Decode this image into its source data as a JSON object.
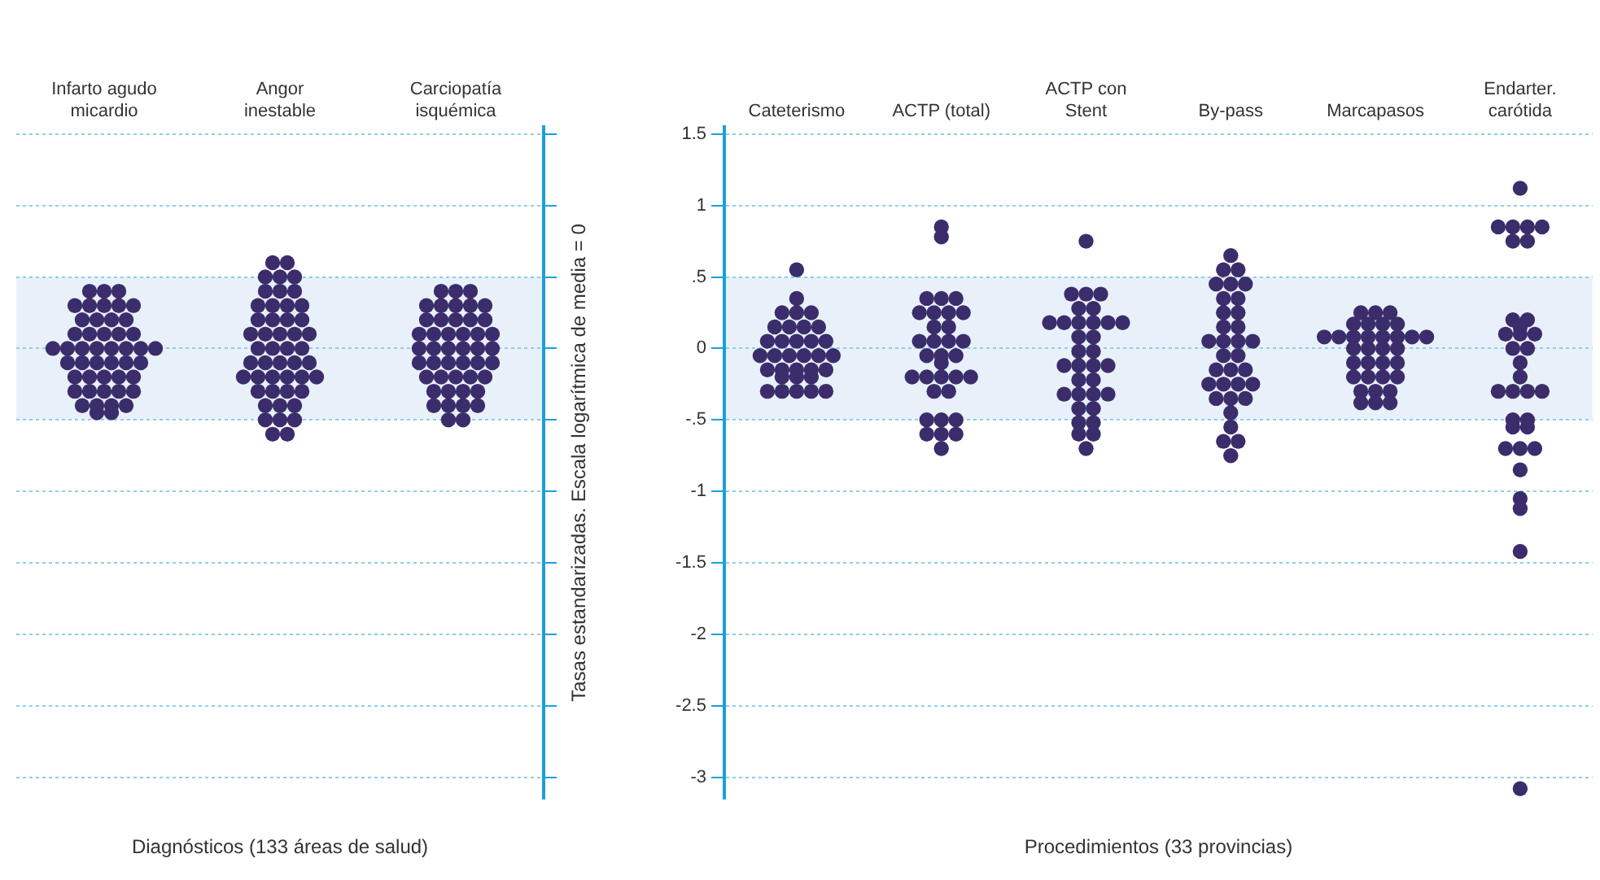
{
  "chart_data": [
    {
      "type": "scatter",
      "categories": [
        "Infarto agudo micardio",
        "Angor inestable",
        "Carciopatía isquémica"
      ],
      "xlabel": "Diagnósticos (133 áreas de salud)",
      "ylim": [
        -3.15,
        1.55
      ],
      "yticks": [
        1.5,
        1,
        0.5,
        0,
        -0.5,
        -1,
        -1.5,
        -2,
        -2.5,
        -3
      ],
      "tick_labels": "x",
      "grid": "y",
      "legend": false,
      "marker": "circle",
      "bands": [
        {
          "axis": "y",
          "from": -0.5,
          "to": 0.5,
          "color": "#e8f1fa"
        }
      ],
      "series": [
        {
          "color": "#3b2d6b",
          "x": [
            "Infarto agudo micardio",
            "Infarto agudo micardio",
            "Infarto agudo micardio",
            "Infarto agudo micardio",
            "Infarto agudo micardio",
            "Infarto agudo micardio",
            "Infarto agudo micardio",
            "Infarto agudo micardio",
            "Infarto agudo micardio",
            "Infarto agudo micardio",
            "Infarto agudo micardio",
            "Infarto agudo micardio",
            "Infarto agudo micardio",
            "Infarto agudo micardio",
            "Infarto agudo micardio",
            "Infarto agudo micardio",
            "Infarto agudo micardio",
            "Infarto agudo micardio",
            "Infarto agudo micardio",
            "Infarto agudo micardio",
            "Infarto agudo micardio",
            "Infarto agudo micardio",
            "Infarto agudo micardio",
            "Infarto agudo micardio",
            "Infarto agudo micardio",
            "Infarto agudo micardio",
            "Infarto agudo micardio",
            "Infarto agudo micardio",
            "Infarto agudo micardio",
            "Infarto agudo micardio",
            "Infarto agudo micardio",
            "Infarto agudo micardio",
            "Infarto agudo micardio",
            "Infarto agudo micardio",
            "Infarto agudo micardio",
            "Infarto agudo micardio",
            "Infarto agudo micardio",
            "Infarto agudo micardio",
            "Infarto agudo micardio",
            "Infarto agudo micardio",
            "Infarto agudo micardio",
            "Infarto agudo micardio",
            "Infarto agudo micardio",
            "Infarto agudo micardio",
            "Infarto agudo micardio",
            "Infarto agudo micardio",
            "Infarto agudo micardio"
          ],
          "values": [
            0.4,
            0.4,
            0.4,
            0.3,
            0.3,
            0.3,
            0.3,
            0.3,
            0.2,
            0.2,
            0.2,
            0.2,
            0.1,
            0.1,
            0.1,
            0.1,
            0.1,
            0,
            0,
            0,
            0,
            0,
            0,
            0,
            0,
            -0.1,
            -0.1,
            -0.1,
            -0.1,
            -0.1,
            -0.1,
            -0.2,
            -0.2,
            -0.2,
            -0.2,
            -0.2,
            -0.3,
            -0.3,
            -0.3,
            -0.3,
            -0.3,
            -0.4,
            -0.4,
            -0.4,
            -0.4,
            -0.45,
            -0.45
          ]
        },
        {
          "color": "#3b2d6b",
          "x": [
            "Angor inestable",
            "Angor inestable",
            "Angor inestable",
            "Angor inestable",
            "Angor inestable",
            "Angor inestable",
            "Angor inestable",
            "Angor inestable",
            "Angor inestable",
            "Angor inestable",
            "Angor inestable",
            "Angor inestable",
            "Angor inestable",
            "Angor inestable",
            "Angor inestable",
            "Angor inestable",
            "Angor inestable",
            "Angor inestable",
            "Angor inestable",
            "Angor inestable",
            "Angor inestable",
            "Angor inestable",
            "Angor inestable",
            "Angor inestable",
            "Angor inestable",
            "Angor inestable",
            "Angor inestable",
            "Angor inestable",
            "Angor inestable",
            "Angor inestable",
            "Angor inestable",
            "Angor inestable",
            "Angor inestable",
            "Angor inestable",
            "Angor inestable",
            "Angor inestable",
            "Angor inestable",
            "Angor inestable",
            "Angor inestable",
            "Angor inestable",
            "Angor inestable",
            "Angor inestable",
            "Angor inestable",
            "Angor inestable",
            "Angor inestable",
            "Angor inestable",
            "Angor inestable",
            "Angor inestable"
          ],
          "values": [
            0.6,
            0.6,
            0.5,
            0.5,
            0.5,
            0.4,
            0.4,
            0.4,
            0.3,
            0.3,
            0.3,
            0.3,
            0.2,
            0.2,
            0.2,
            0.2,
            0.1,
            0.1,
            0.1,
            0.1,
            0.1,
            0,
            0,
            0,
            0,
            -0.1,
            -0.1,
            -0.1,
            -0.1,
            -0.1,
            -0.2,
            -0.2,
            -0.2,
            -0.2,
            -0.2,
            -0.2,
            -0.3,
            -0.3,
            -0.3,
            -0.3,
            -0.4,
            -0.4,
            -0.4,
            -0.5,
            -0.5,
            -0.5,
            -0.6,
            -0.6
          ]
        },
        {
          "color": "#3b2d6b",
          "x": [
            "Carciopatía isquémica",
            "Carciopatía isquémica",
            "Carciopatía isquémica",
            "Carciopatía isquémica",
            "Carciopatía isquémica",
            "Carciopatía isquémica",
            "Carciopatía isquémica",
            "Carciopatía isquémica",
            "Carciopatía isquémica",
            "Carciopatía isquémica",
            "Carciopatía isquémica",
            "Carciopatía isquémica",
            "Carciopatía isquémica",
            "Carciopatía isquémica",
            "Carciopatía isquémica",
            "Carciopatía isquémica",
            "Carciopatía isquémica",
            "Carciopatía isquémica",
            "Carciopatía isquémica",
            "Carciopatía isquémica",
            "Carciopatía isquémica",
            "Carciopatía isquémica",
            "Carciopatía isquémica",
            "Carciopatía isquémica",
            "Carciopatía isquémica",
            "Carciopatía isquémica",
            "Carciopatía isquémica",
            "Carciopatía isquémica",
            "Carciopatía isquémica",
            "Carciopatía isquémica",
            "Carciopatía isquémica",
            "Carciopatía isquémica",
            "Carciopatía isquémica",
            "Carciopatía isquémica",
            "Carciopatía isquémica",
            "Carciopatía isquémica",
            "Carciopatía isquémica",
            "Carciopatía isquémica",
            "Carciopatía isquémica",
            "Carciopatía isquémica",
            "Carciopatía isquémica",
            "Carciopatía isquémica",
            "Carciopatía isquémica",
            "Carciopatía isquémica",
            "Carciopatía isquémica",
            "Carciopatía isquémica"
          ],
          "values": [
            0.4,
            0.4,
            0.4,
            0.3,
            0.3,
            0.3,
            0.3,
            0.3,
            0.2,
            0.2,
            0.2,
            0.2,
            0.2,
            0.1,
            0.1,
            0.1,
            0.1,
            0.1,
            0.1,
            0,
            0,
            0,
            0,
            0,
            0,
            -0.1,
            -0.1,
            -0.1,
            -0.1,
            -0.1,
            -0.1,
            -0.2,
            -0.2,
            -0.2,
            -0.2,
            -0.2,
            -0.3,
            -0.3,
            -0.3,
            -0.3,
            -0.4,
            -0.4,
            -0.4,
            -0.4,
            -0.5,
            -0.5
          ]
        }
      ]
    },
    {
      "type": "scatter",
      "categories": [
        "Cateterismo",
        "ACTP (total)",
        "ACTP con Stent",
        "By-pass",
        "Marcapasos",
        "Endarter. carótida"
      ],
      "xlabel": "Procedimientos (33 provincias)",
      "ylabel": "Tasas estandarizadas. Escala logarítmica de media = 0",
      "ylim": [
        -3.15,
        1.55
      ],
      "yticks": [
        {
          "value": 1.5,
          "label": "1.5"
        },
        {
          "value": 1,
          "label": "1"
        },
        {
          "value": 0.5,
          "label": ".5"
        },
        {
          "value": 0,
          "label": "0"
        },
        {
          "value": -0.5,
          "label": "-.5"
        },
        {
          "value": -1,
          "label": "-1"
        },
        {
          "value": -1.5,
          "label": "-1.5"
        },
        {
          "value": -2,
          "label": "-2"
        },
        {
          "value": -2.5,
          "label": "-2.5"
        },
        {
          "value": -3,
          "label": "-3"
        }
      ],
      "grid": "y",
      "legend": false,
      "marker": "circle",
      "bands": [
        {
          "axis": "y",
          "from": -0.5,
          "to": 0.5,
          "color": "#e8f1fa"
        }
      ],
      "series": [
        {
          "color": "#3b2d6b",
          "x": [
            "Cateterismo",
            "Cateterismo",
            "Cateterismo",
            "Cateterismo",
            "Cateterismo",
            "Cateterismo",
            "Cateterismo",
            "Cateterismo",
            "Cateterismo",
            "Cateterismo",
            "Cateterismo",
            "Cateterismo",
            "Cateterismo",
            "Cateterismo",
            "Cateterismo",
            "Cateterismo",
            "Cateterismo",
            "Cateterismo",
            "Cateterismo",
            "Cateterismo",
            "Cateterismo",
            "Cateterismo",
            "Cateterismo",
            "Cateterismo",
            "Cateterismo",
            "Cateterismo",
            "Cateterismo",
            "Cateterismo",
            "Cateterismo",
            "Cateterismo",
            "Cateterismo",
            "Cateterismo",
            "Cateterismo"
          ],
          "values": [
            0.55,
            0.35,
            0.25,
            0.25,
            0.25,
            0.15,
            0.15,
            0.15,
            0.15,
            0.05,
            0.05,
            0.05,
            0.05,
            0.05,
            -0.05,
            -0.05,
            -0.05,
            -0.05,
            -0.05,
            -0.05,
            -0.15,
            -0.15,
            -0.15,
            -0.15,
            -0.15,
            -0.2,
            -0.2,
            -0.2,
            -0.3,
            -0.3,
            -0.3,
            -0.3,
            -0.3
          ]
        },
        {
          "color": "#3b2d6b",
          "x": [
            "ACTP (total)",
            "ACTP (total)",
            "ACTP (total)",
            "ACTP (total)",
            "ACTP (total)",
            "ACTP (total)",
            "ACTP (total)",
            "ACTP (total)",
            "ACTP (total)",
            "ACTP (total)",
            "ACTP (total)",
            "ACTP (total)",
            "ACTP (total)",
            "ACTP (total)",
            "ACTP (total)",
            "ACTP (total)",
            "ACTP (total)",
            "ACTP (total)",
            "ACTP (total)",
            "ACTP (total)",
            "ACTP (total)",
            "ACTP (total)",
            "ACTP (total)",
            "ACTP (total)",
            "ACTP (total)",
            "ACTP (total)",
            "ACTP (total)",
            "ACTP (total)",
            "ACTP (total)",
            "ACTP (total)",
            "ACTP (total)",
            "ACTP (total)",
            "ACTP (total)"
          ],
          "values": [
            0.85,
            0.78,
            0.35,
            0.35,
            0.35,
            0.25,
            0.25,
            0.25,
            0.25,
            0.15,
            0.15,
            0.05,
            0.05,
            0.05,
            0.05,
            -0.05,
            -0.05,
            -0.05,
            -0.1,
            -0.2,
            -0.2,
            -0.2,
            -0.2,
            -0.2,
            -0.3,
            -0.3,
            -0.5,
            -0.5,
            -0.5,
            -0.6,
            -0.6,
            -0.6,
            -0.7
          ]
        },
        {
          "color": "#3b2d6b",
          "x": [
            "ACTP con Stent",
            "ACTP con Stent",
            "ACTP con Stent",
            "ACTP con Stent",
            "ACTP con Stent",
            "ACTP con Stent",
            "ACTP con Stent",
            "ACTP con Stent",
            "ACTP con Stent",
            "ACTP con Stent",
            "ACTP con Stent",
            "ACTP con Stent",
            "ACTP con Stent",
            "ACTP con Stent",
            "ACTP con Stent",
            "ACTP con Stent",
            "ACTP con Stent",
            "ACTP con Stent",
            "ACTP con Stent",
            "ACTP con Stent",
            "ACTP con Stent",
            "ACTP con Stent",
            "ACTP con Stent",
            "ACTP con Stent",
            "ACTP con Stent",
            "ACTP con Stent",
            "ACTP con Stent",
            "ACTP con Stent",
            "ACTP con Stent",
            "ACTP con Stent",
            "ACTP con Stent",
            "ACTP con Stent",
            "ACTP con Stent"
          ],
          "values": [
            0.75,
            0.38,
            0.38,
            0.38,
            0.28,
            0.28,
            0.18,
            0.18,
            0.18,
            0.18,
            0.18,
            0.18,
            0.08,
            0.08,
            -0.02,
            -0.02,
            -0.12,
            -0.12,
            -0.12,
            -0.12,
            -0.22,
            -0.22,
            -0.32,
            -0.32,
            -0.32,
            -0.32,
            -0.42,
            -0.42,
            -0.52,
            -0.52,
            -0.6,
            -0.6,
            -0.7
          ]
        },
        {
          "color": "#3b2d6b",
          "x": [
            "By-pass",
            "By-pass",
            "By-pass",
            "By-pass",
            "By-pass",
            "By-pass",
            "By-pass",
            "By-pass",
            "By-pass",
            "By-pass",
            "By-pass",
            "By-pass",
            "By-pass",
            "By-pass",
            "By-pass",
            "By-pass",
            "By-pass",
            "By-pass",
            "By-pass",
            "By-pass",
            "By-pass",
            "By-pass",
            "By-pass",
            "By-pass",
            "By-pass",
            "By-pass",
            "By-pass",
            "By-pass",
            "By-pass",
            "By-pass",
            "By-pass",
            "By-pass",
            "By-pass"
          ],
          "values": [
            0.65,
            0.55,
            0.55,
            0.45,
            0.45,
            0.45,
            0.35,
            0.35,
            0.25,
            0.25,
            0.15,
            0.15,
            0.05,
            0.05,
            0.05,
            0.05,
            -0.05,
            -0.05,
            -0.15,
            -0.15,
            -0.15,
            -0.25,
            -0.25,
            -0.25,
            -0.25,
            -0.35,
            -0.35,
            -0.35,
            -0.45,
            -0.55,
            -0.65,
            -0.65,
            -0.75
          ]
        },
        {
          "color": "#3b2d6b",
          "x": [
            "Marcapasos",
            "Marcapasos",
            "Marcapasos",
            "Marcapasos",
            "Marcapasos",
            "Marcapasos",
            "Marcapasos",
            "Marcapasos",
            "Marcapasos",
            "Marcapasos",
            "Marcapasos",
            "Marcapasos",
            "Marcapasos",
            "Marcapasos",
            "Marcapasos",
            "Marcapasos",
            "Marcapasos",
            "Marcapasos",
            "Marcapasos",
            "Marcapasos",
            "Marcapasos",
            "Marcapasos",
            "Marcapasos",
            "Marcapasos",
            "Marcapasos",
            "Marcapasos",
            "Marcapasos",
            "Marcapasos",
            "Marcapasos",
            "Marcapasos",
            "Marcapasos",
            "Marcapasos",
            "Marcapasos"
          ],
          "values": [
            0.25,
            0.25,
            0.25,
            0.17,
            0.17,
            0.17,
            0.17,
            0.08,
            0.08,
            0.08,
            0.08,
            0.08,
            0.08,
            0.08,
            0.08,
            0,
            0,
            0,
            0,
            -0.1,
            -0.1,
            -0.1,
            -0.1,
            -0.2,
            -0.2,
            -0.2,
            -0.2,
            -0.3,
            -0.3,
            -0.3,
            -0.38,
            -0.38,
            -0.38
          ]
        },
        {
          "color": "#3b2d6b",
          "x": [
            "Endarter. carótida",
            "Endarter. carótida",
            "Endarter. carótida",
            "Endarter. carótida",
            "Endarter. carótida",
            "Endarter. carótida",
            "Endarter. carótida",
            "Endarter. carótida",
            "Endarter. carótida",
            "Endarter. carótida",
            "Endarter. carótida",
            "Endarter. carótida",
            "Endarter. carótida",
            "Endarter. carótida",
            "Endarter. carótida",
            "Endarter. carótida",
            "Endarter. carótida",
            "Endarter. carótida",
            "Endarter. carótida",
            "Endarter. carótida",
            "Endarter. carótida",
            "Endarter. carótida",
            "Endarter. carótida",
            "Endarter. carótida",
            "Endarter. carótida",
            "Endarter. carótida",
            "Endarter. carótida",
            "Endarter. carótida",
            "Endarter. carótida",
            "Endarter. carótida",
            "Endarter. carótida",
            "Endarter. carótida",
            "Endarter. carótida"
          ],
          "values": [
            1.12,
            0.85,
            0.85,
            0.85,
            0.85,
            0.75,
            0.75,
            0.2,
            0.2,
            0.15,
            0.1,
            0.1,
            0.1,
            0,
            0,
            -0.1,
            -0.2,
            -0.3,
            -0.3,
            -0.3,
            -0.3,
            -0.5,
            -0.5,
            -0.55,
            -0.55,
            -0.7,
            -0.7,
            -0.7,
            -0.85,
            -1.05,
            -1.12,
            -1.42,
            -3.08
          ]
        }
      ]
    }
  ]
}
